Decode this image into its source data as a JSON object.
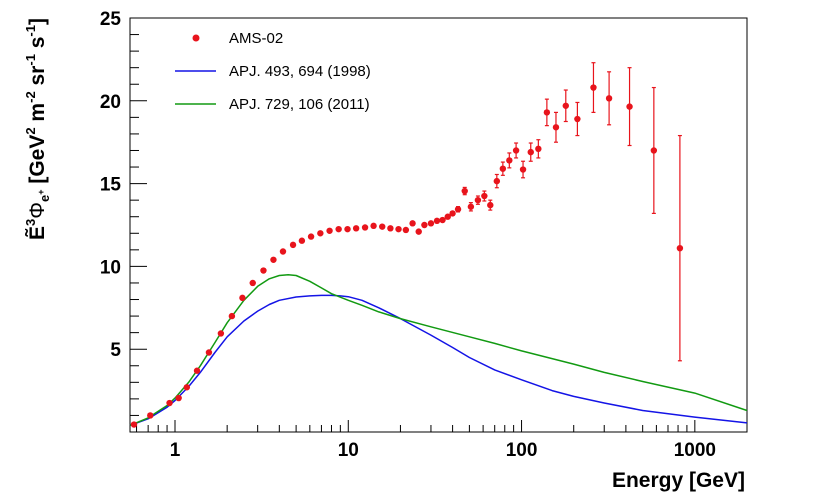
{
  "chart_data": {
    "type": "scatter",
    "x_scale": "log",
    "xlim": [
      0.55,
      2000
    ],
    "ylim": [
      0,
      25
    ],
    "xlabel": "Energy [GeV]",
    "ylabel_parts": {
      "e_tilde": "Ẽ",
      "power3": "3",
      "phi": "Φ",
      "phi_sub_e": "e",
      "phi_sub_plus": "+",
      "open": " [GeV",
      "pow2": "2",
      "m": " m",
      "pow_m2": "-2",
      "sr": " sr",
      "pow_m1a": "-1",
      "s": " s",
      "pow_m1b": "-1",
      "close": "]"
    },
    "x_ticks": [
      {
        "value": 1,
        "label": "1"
      },
      {
        "value": 10,
        "label": "10"
      },
      {
        "value": 100,
        "label": "100"
      },
      {
        "value": 1000,
        "label": "1000"
      }
    ],
    "y_ticks": [
      {
        "value": 5,
        "label": "5"
      },
      {
        "value": 10,
        "label": "10"
      },
      {
        "value": 15,
        "label": "15"
      },
      {
        "value": 20,
        "label": "20"
      },
      {
        "value": 25,
        "label": "25"
      }
    ],
    "legend": [
      {
        "label": "AMS-02",
        "kind": "marker",
        "color": "#e8141c"
      },
      {
        "label": "APJ. 493, 694 (1998)",
        "kind": "line",
        "color": "#1414e6"
      },
      {
        "label": "APJ. 729, 106 (2011)",
        "kind": "line",
        "color": "#129a12"
      }
    ],
    "series": [
      {
        "name": "AMS-02",
        "color": "#e8141c",
        "points": [
          [
            0.58,
            0.45,
            0.05
          ],
          [
            0.72,
            1.0,
            0.05
          ],
          [
            0.93,
            1.75,
            0.05
          ],
          [
            1.05,
            2.05,
            0.05
          ],
          [
            1.17,
            2.7,
            0.05
          ],
          [
            1.34,
            3.7,
            0.06
          ],
          [
            1.57,
            4.8,
            0.06
          ],
          [
            1.84,
            5.95,
            0.07
          ],
          [
            2.13,
            7.0,
            0.07
          ],
          [
            2.45,
            8.1,
            0.08
          ],
          [
            2.81,
            9.0,
            0.08
          ],
          [
            3.24,
            9.75,
            0.08
          ],
          [
            3.7,
            10.4,
            0.08
          ],
          [
            4.2,
            10.9,
            0.08
          ],
          [
            4.8,
            11.3,
            0.08
          ],
          [
            5.4,
            11.55,
            0.08
          ],
          [
            6.1,
            11.8,
            0.08
          ],
          [
            6.9,
            12.0,
            0.08
          ],
          [
            7.8,
            12.15,
            0.08
          ],
          [
            8.8,
            12.25,
            0.08
          ],
          [
            9.9,
            12.25,
            0.08
          ],
          [
            11.1,
            12.3,
            0.08
          ],
          [
            12.5,
            12.35,
            0.09
          ],
          [
            14.0,
            12.45,
            0.1
          ],
          [
            15.7,
            12.4,
            0.1
          ],
          [
            17.5,
            12.3,
            0.1
          ],
          [
            19.5,
            12.25,
            0.1
          ],
          [
            21.5,
            12.2,
            0.1
          ],
          [
            23.5,
            12.6,
            0.12
          ],
          [
            25.5,
            12.1,
            0.12
          ],
          [
            27.5,
            12.5,
            0.12
          ],
          [
            30.0,
            12.6,
            0.12
          ],
          [
            32.5,
            12.75,
            0.13
          ],
          [
            35.0,
            12.8,
            0.13
          ],
          [
            37.5,
            13.0,
            0.14
          ],
          [
            40.0,
            13.2,
            0.15
          ],
          [
            43.0,
            13.45,
            0.16
          ],
          [
            47.0,
            14.55,
            0.22
          ],
          [
            51.0,
            13.6,
            0.25
          ],
          [
            56.0,
            14.0,
            0.25
          ],
          [
            61.0,
            14.25,
            0.3
          ],
          [
            66.0,
            13.7,
            0.3
          ],
          [
            72.0,
            15.15,
            0.4
          ],
          [
            78.0,
            15.9,
            0.4
          ],
          [
            85.0,
            16.4,
            0.45
          ],
          [
            93.0,
            17.0,
            0.45
          ],
          [
            102.0,
            15.85,
            0.5
          ],
          [
            113.0,
            16.9,
            0.55
          ],
          [
            125.0,
            17.1,
            0.55
          ],
          [
            140.0,
            19.3,
            0.8
          ],
          [
            158.0,
            18.4,
            0.9
          ],
          [
            180.0,
            19.7,
            0.95
          ],
          [
            210.0,
            18.9,
            1.0
          ],
          [
            260.0,
            20.8,
            1.5
          ],
          [
            320.0,
            20.15,
            1.6
          ],
          [
            420.0,
            19.65,
            2.35
          ],
          [
            580.0,
            17.0,
            3.8
          ],
          [
            820.0,
            11.1,
            6.8
          ]
        ]
      },
      {
        "name": "APJ. 493, 694 (1998)",
        "color": "#1414e6",
        "curve": [
          [
            0.55,
            0.4
          ],
          [
            0.7,
            0.8
          ],
          [
            0.9,
            1.5
          ],
          [
            1.0,
            1.9
          ],
          [
            1.2,
            2.75
          ],
          [
            1.4,
            3.6
          ],
          [
            1.7,
            4.8
          ],
          [
            2.0,
            5.75
          ],
          [
            2.5,
            6.7
          ],
          [
            3.0,
            7.3
          ],
          [
            3.5,
            7.7
          ],
          [
            4.0,
            7.95
          ],
          [
            5.0,
            8.15
          ],
          [
            6.0,
            8.22
          ],
          [
            7.0,
            8.25
          ],
          [
            8.0,
            8.25
          ],
          [
            9.0,
            8.22
          ],
          [
            10.0,
            8.17
          ],
          [
            12.0,
            7.95
          ],
          [
            15.0,
            7.5
          ],
          [
            20.0,
            6.85
          ],
          [
            30.0,
            5.85
          ],
          [
            40.0,
            5.1
          ],
          [
            50.0,
            4.5
          ],
          [
            70.0,
            3.75
          ],
          [
            100.0,
            3.15
          ],
          [
            150.0,
            2.5
          ],
          [
            200.0,
            2.15
          ],
          [
            300.0,
            1.75
          ],
          [
            500.0,
            1.3
          ],
          [
            1000.0,
            0.9
          ],
          [
            2000.0,
            0.55
          ]
        ]
      },
      {
        "name": "APJ. 729, 106 (2011)",
        "color": "#129a12",
        "curve": [
          [
            0.55,
            0.4
          ],
          [
            0.7,
            0.85
          ],
          [
            0.9,
            1.6
          ],
          [
            1.0,
            2.05
          ],
          [
            1.2,
            3.0
          ],
          [
            1.4,
            4.0
          ],
          [
            1.7,
            5.4
          ],
          [
            2.0,
            6.6
          ],
          [
            2.5,
            7.95
          ],
          [
            3.0,
            8.8
          ],
          [
            3.5,
            9.25
          ],
          [
            4.0,
            9.45
          ],
          [
            4.5,
            9.5
          ],
          [
            5.0,
            9.45
          ],
          [
            6.0,
            9.1
          ],
          [
            7.0,
            8.7
          ],
          [
            8.0,
            8.35
          ],
          [
            10.0,
            7.95
          ],
          [
            12.0,
            7.65
          ],
          [
            15.0,
            7.25
          ],
          [
            20.0,
            6.85
          ],
          [
            30.0,
            6.35
          ],
          [
            50.0,
            5.75
          ],
          [
            70.0,
            5.35
          ],
          [
            100.0,
            4.9
          ],
          [
            200.0,
            4.1
          ],
          [
            300.0,
            3.6
          ],
          [
            500.0,
            3.05
          ],
          [
            1000.0,
            2.35
          ],
          [
            2000.0,
            1.3
          ]
        ]
      }
    ]
  }
}
